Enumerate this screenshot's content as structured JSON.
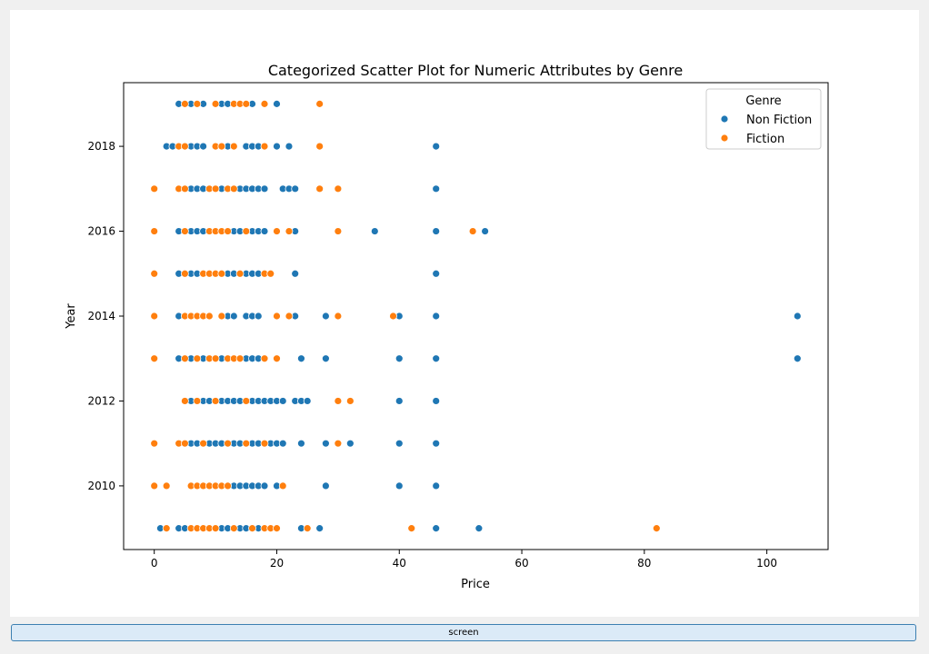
{
  "screen_button": {
    "label": "screen"
  },
  "chart_data": {
    "type": "scatter",
    "title": "Categorized Scatter Plot for Numeric Attributes by Genre",
    "xlabel": "Price",
    "ylabel": "Year",
    "xlim": [
      -5,
      110
    ],
    "ylim": [
      2008.5,
      2019.5
    ],
    "xticks": [
      0,
      20,
      40,
      60,
      80,
      100
    ],
    "yticks": [
      2010,
      2012,
      2014,
      2016,
      2018
    ],
    "grid": false,
    "legend": {
      "title": "Genre",
      "position": "upper right"
    },
    "series": [
      {
        "name": "Non Fiction",
        "color": "#1f77b4",
        "points": [
          [
            4,
            2019
          ],
          [
            6,
            2019
          ],
          [
            8,
            2019
          ],
          [
            11,
            2019
          ],
          [
            12,
            2019
          ],
          [
            16,
            2019
          ],
          [
            20,
            2019
          ],
          [
            2,
            2018
          ],
          [
            3,
            2018
          ],
          [
            6,
            2018
          ],
          [
            7,
            2018
          ],
          [
            8,
            2018
          ],
          [
            12,
            2018
          ],
          [
            15,
            2018
          ],
          [
            16,
            2018
          ],
          [
            17,
            2018
          ],
          [
            20,
            2018
          ],
          [
            22,
            2018
          ],
          [
            46,
            2018
          ],
          [
            6,
            2017
          ],
          [
            7,
            2017
          ],
          [
            8,
            2017
          ],
          [
            11,
            2017
          ],
          [
            14,
            2017
          ],
          [
            15,
            2017
          ],
          [
            16,
            2017
          ],
          [
            17,
            2017
          ],
          [
            18,
            2017
          ],
          [
            21,
            2017
          ],
          [
            22,
            2017
          ],
          [
            23,
            2017
          ],
          [
            46,
            2017
          ],
          [
            4,
            2016
          ],
          [
            6,
            2016
          ],
          [
            7,
            2016
          ],
          [
            8,
            2016
          ],
          [
            13,
            2016
          ],
          [
            14,
            2016
          ],
          [
            16,
            2016
          ],
          [
            17,
            2016
          ],
          [
            18,
            2016
          ],
          [
            23,
            2016
          ],
          [
            36,
            2016
          ],
          [
            46,
            2016
          ],
          [
            54,
            2016
          ],
          [
            4,
            2015
          ],
          [
            6,
            2015
          ],
          [
            7,
            2015
          ],
          [
            11,
            2015
          ],
          [
            12,
            2015
          ],
          [
            13,
            2015
          ],
          [
            15,
            2015
          ],
          [
            16,
            2015
          ],
          [
            17,
            2015
          ],
          [
            23,
            2015
          ],
          [
            46,
            2015
          ],
          [
            4,
            2014
          ],
          [
            12,
            2014
          ],
          [
            13,
            2014
          ],
          [
            15,
            2014
          ],
          [
            16,
            2014
          ],
          [
            17,
            2014
          ],
          [
            23,
            2014
          ],
          [
            28,
            2014
          ],
          [
            40,
            2014
          ],
          [
            46,
            2014
          ],
          [
            105,
            2014
          ],
          [
            4,
            2013
          ],
          [
            6,
            2013
          ],
          [
            8,
            2013
          ],
          [
            11,
            2013
          ],
          [
            15,
            2013
          ],
          [
            16,
            2013
          ],
          [
            17,
            2013
          ],
          [
            24,
            2013
          ],
          [
            28,
            2013
          ],
          [
            40,
            2013
          ],
          [
            46,
            2013
          ],
          [
            105,
            2013
          ],
          [
            6,
            2012
          ],
          [
            8,
            2012
          ],
          [
            9,
            2012
          ],
          [
            11,
            2012
          ],
          [
            12,
            2012
          ],
          [
            13,
            2012
          ],
          [
            14,
            2012
          ],
          [
            16,
            2012
          ],
          [
            17,
            2012
          ],
          [
            18,
            2012
          ],
          [
            19,
            2012
          ],
          [
            20,
            2012
          ],
          [
            21,
            2012
          ],
          [
            23,
            2012
          ],
          [
            24,
            2012
          ],
          [
            25,
            2012
          ],
          [
            40,
            2012
          ],
          [
            46,
            2012
          ],
          [
            6,
            2011
          ],
          [
            7,
            2011
          ],
          [
            9,
            2011
          ],
          [
            10,
            2011
          ],
          [
            11,
            2011
          ],
          [
            13,
            2011
          ],
          [
            14,
            2011
          ],
          [
            16,
            2011
          ],
          [
            17,
            2011
          ],
          [
            19,
            2011
          ],
          [
            20,
            2011
          ],
          [
            21,
            2011
          ],
          [
            24,
            2011
          ],
          [
            28,
            2011
          ],
          [
            32,
            2011
          ],
          [
            40,
            2011
          ],
          [
            46,
            2011
          ],
          [
            13,
            2010
          ],
          [
            14,
            2010
          ],
          [
            15,
            2010
          ],
          [
            16,
            2010
          ],
          [
            17,
            2010
          ],
          [
            18,
            2010
          ],
          [
            20,
            2010
          ],
          [
            28,
            2010
          ],
          [
            40,
            2010
          ],
          [
            46,
            2010
          ],
          [
            1,
            2009
          ],
          [
            4,
            2009
          ],
          [
            5,
            2009
          ],
          [
            8,
            2009
          ],
          [
            11,
            2009
          ],
          [
            12,
            2009
          ],
          [
            14,
            2009
          ],
          [
            15,
            2009
          ],
          [
            17,
            2009
          ],
          [
            24,
            2009
          ],
          [
            27,
            2009
          ],
          [
            46,
            2009
          ],
          [
            53,
            2009
          ]
        ]
      },
      {
        "name": "Fiction",
        "color": "#ff7f0e",
        "points": [
          [
            5,
            2019
          ],
          [
            7,
            2019
          ],
          [
            10,
            2019
          ],
          [
            13,
            2019
          ],
          [
            14,
            2019
          ],
          [
            15,
            2019
          ],
          [
            18,
            2019
          ],
          [
            27,
            2019
          ],
          [
            4,
            2018
          ],
          [
            5,
            2018
          ],
          [
            10,
            2018
          ],
          [
            11,
            2018
          ],
          [
            13,
            2018
          ],
          [
            18,
            2018
          ],
          [
            27,
            2018
          ],
          [
            0,
            2017
          ],
          [
            4,
            2017
          ],
          [
            5,
            2017
          ],
          [
            9,
            2017
          ],
          [
            10,
            2017
          ],
          [
            12,
            2017
          ],
          [
            13,
            2017
          ],
          [
            27,
            2017
          ],
          [
            30,
            2017
          ],
          [
            0,
            2016
          ],
          [
            5,
            2016
          ],
          [
            9,
            2016
          ],
          [
            10,
            2016
          ],
          [
            11,
            2016
          ],
          [
            12,
            2016
          ],
          [
            15,
            2016
          ],
          [
            20,
            2016
          ],
          [
            22,
            2016
          ],
          [
            30,
            2016
          ],
          [
            52,
            2016
          ],
          [
            0,
            2015
          ],
          [
            5,
            2015
          ],
          [
            8,
            2015
          ],
          [
            9,
            2015
          ],
          [
            10,
            2015
          ],
          [
            11,
            2015
          ],
          [
            14,
            2015
          ],
          [
            18,
            2015
          ],
          [
            19,
            2015
          ],
          [
            0,
            2014
          ],
          [
            5,
            2014
          ],
          [
            6,
            2014
          ],
          [
            7,
            2014
          ],
          [
            8,
            2014
          ],
          [
            9,
            2014
          ],
          [
            11,
            2014
          ],
          [
            20,
            2014
          ],
          [
            22,
            2014
          ],
          [
            30,
            2014
          ],
          [
            39,
            2014
          ],
          [
            0,
            2013
          ],
          [
            5,
            2013
          ],
          [
            7,
            2013
          ],
          [
            9,
            2013
          ],
          [
            10,
            2013
          ],
          [
            12,
            2013
          ],
          [
            13,
            2013
          ],
          [
            14,
            2013
          ],
          [
            18,
            2013
          ],
          [
            20,
            2013
          ],
          [
            5,
            2012
          ],
          [
            7,
            2012
          ],
          [
            10,
            2012
          ],
          [
            15,
            2012
          ],
          [
            30,
            2012
          ],
          [
            32,
            2012
          ],
          [
            0,
            2011
          ],
          [
            4,
            2011
          ],
          [
            5,
            2011
          ],
          [
            8,
            2011
          ],
          [
            12,
            2011
          ],
          [
            15,
            2011
          ],
          [
            18,
            2011
          ],
          [
            30,
            2011
          ],
          [
            0,
            2010
          ],
          [
            2,
            2010
          ],
          [
            6,
            2010
          ],
          [
            7,
            2010
          ],
          [
            8,
            2010
          ],
          [
            9,
            2010
          ],
          [
            10,
            2010
          ],
          [
            11,
            2010
          ],
          [
            12,
            2010
          ],
          [
            21,
            2010
          ],
          [
            2,
            2009
          ],
          [
            6,
            2009
          ],
          [
            7,
            2009
          ],
          [
            8,
            2009
          ],
          [
            9,
            2009
          ],
          [
            10,
            2009
          ],
          [
            13,
            2009
          ],
          [
            16,
            2009
          ],
          [
            18,
            2009
          ],
          [
            19,
            2009
          ],
          [
            20,
            2009
          ],
          [
            25,
            2009
          ],
          [
            42,
            2009
          ],
          [
            82,
            2009
          ]
        ]
      }
    ]
  }
}
